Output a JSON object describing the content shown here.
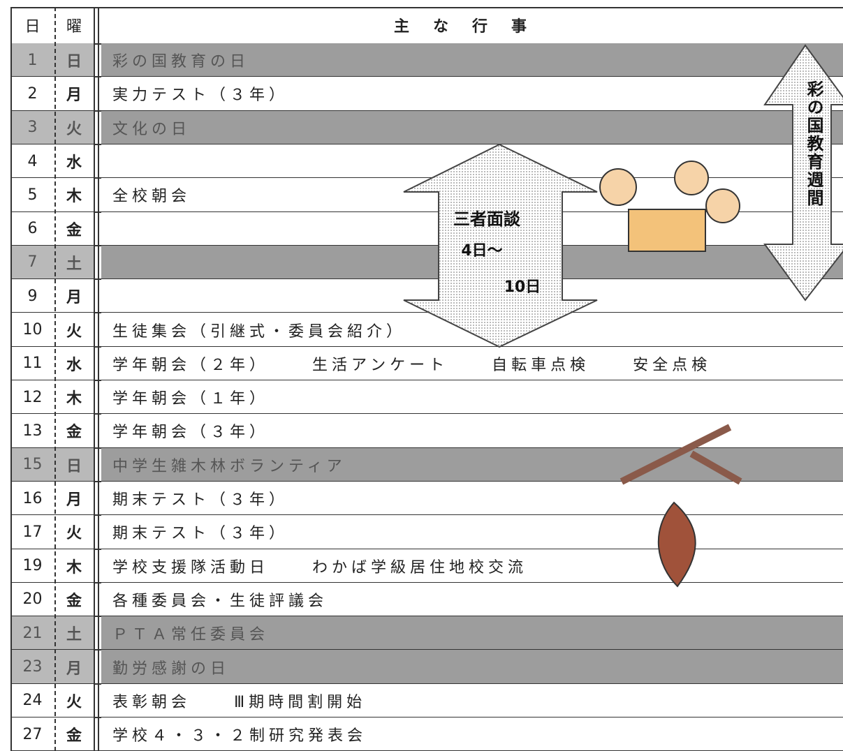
{
  "header": {
    "day": "日",
    "weekday": "曜",
    "events": "主な行事"
  },
  "rows": [
    {
      "day": "1",
      "weekday": "日",
      "events": [
        "彩の国教育の日"
      ],
      "shaded": true
    },
    {
      "day": "2",
      "weekday": "月",
      "events": [
        "実力テスト（３年）"
      ],
      "shaded": false
    },
    {
      "day": "3",
      "weekday": "火",
      "events": [
        "文化の日"
      ],
      "shaded": true
    },
    {
      "day": "4",
      "weekday": "水",
      "events": [],
      "shaded": false
    },
    {
      "day": "5",
      "weekday": "木",
      "events": [
        "全校朝会"
      ],
      "shaded": false
    },
    {
      "day": "6",
      "weekday": "金",
      "events": [],
      "shaded": false
    },
    {
      "day": "7",
      "weekday": "土",
      "events": [],
      "shaded": true
    },
    {
      "day": "9",
      "weekday": "月",
      "events": [],
      "shaded": false
    },
    {
      "day": "10",
      "weekday": "火",
      "events": [
        "生徒集会（引継式・委員会紹介）"
      ],
      "shaded": false
    },
    {
      "day": "11",
      "weekday": "水",
      "events": [
        "学年朝会（２年）",
        "生活アンケート",
        "自転車点検",
        "安全点検"
      ],
      "shaded": false
    },
    {
      "day": "12",
      "weekday": "木",
      "events": [
        "学年朝会（１年）"
      ],
      "shaded": false
    },
    {
      "day": "13",
      "weekday": "金",
      "events": [
        "学年朝会（３年）"
      ],
      "shaded": false
    },
    {
      "day": "15",
      "weekday": "日",
      "events": [
        "中学生雑木林ボランティア"
      ],
      "shaded": true
    },
    {
      "day": "16",
      "weekday": "月",
      "events": [
        "期末テスト（３年）"
      ],
      "shaded": false
    },
    {
      "day": "17",
      "weekday": "火",
      "events": [
        "期末テスト（３年）"
      ],
      "shaded": false
    },
    {
      "day": "19",
      "weekday": "木",
      "events": [
        "学校支援隊活動日",
        "わかば学級居住地校交流"
      ],
      "shaded": false
    },
    {
      "day": "20",
      "weekday": "金",
      "events": [
        "各種委員会・生徒評議会"
      ],
      "shaded": false
    },
    {
      "day": "21",
      "weekday": "土",
      "events": [
        "ＰＴＡ常任委員会"
      ],
      "shaded": true
    },
    {
      "day": "23",
      "weekday": "月",
      "events": [
        "勤労感謝の日"
      ],
      "shaded": true
    },
    {
      "day": "24",
      "weekday": "火",
      "events": [
        "表彰朝会",
        "Ⅲ期時間割開始"
      ],
      "shaded": false
    },
    {
      "day": "27",
      "weekday": "金",
      "events": [
        "学校４・３・２制研究発表会"
      ],
      "shaded": false
    }
  ],
  "annotations": {
    "week": "彩の国教育週間",
    "meeting": "三者面談",
    "meeting_start": "4日〜",
    "meeting_end": "10日"
  }
}
